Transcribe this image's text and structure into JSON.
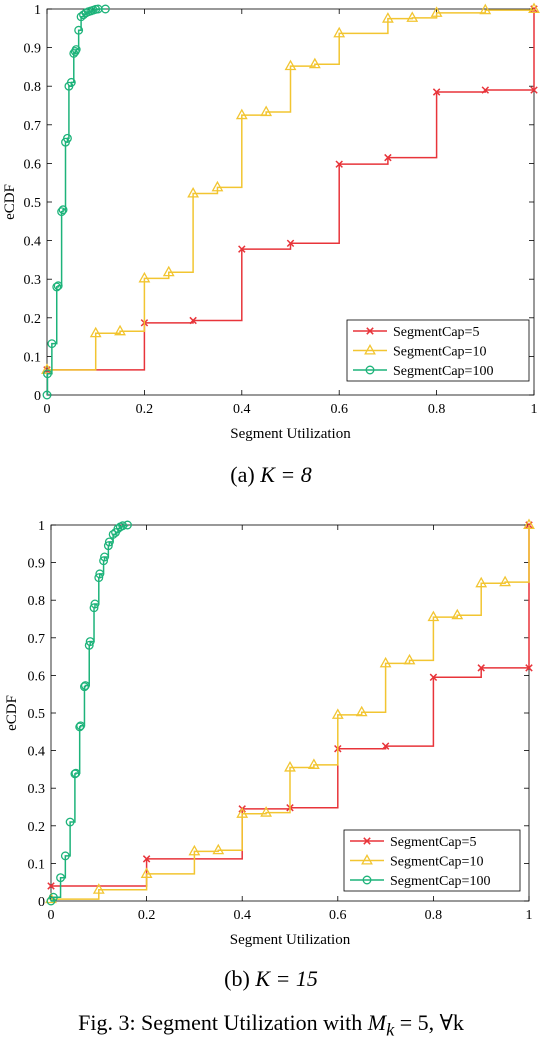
{
  "chart_data": [
    {
      "type": "line",
      "subcaption_label": "(a)",
      "subcaption_math": "K = 8",
      "xlabel": "Segment Utilization",
      "ylabel": "eCDF",
      "xlim": [
        0,
        1
      ],
      "ylim": [
        0,
        1
      ],
      "xticks": [
        "0",
        "0.2",
        "0.4",
        "0.6",
        "0.8",
        "1"
      ],
      "yticks": [
        "0",
        "0.1",
        "0.2",
        "0.3",
        "0.4",
        "0.5",
        "0.6",
        "0.7",
        "0.8",
        "0.9",
        "1"
      ],
      "legend_position": "bottom-right",
      "series": [
        {
          "name": "SegmentCap=5",
          "color": "#e8343a",
          "marker": "x",
          "x": [
            0,
            0.2,
            0.3,
            0.4,
            0.5,
            0.6,
            0.7,
            0.8,
            0.9,
            1.0,
            1.0
          ],
          "y": [
            0.065,
            0.187,
            0.193,
            0.378,
            0.393,
            0.598,
            0.615,
            0.785,
            0.79,
            0.79,
            1.0
          ]
        },
        {
          "name": "SegmentCap=10",
          "color": "#f2c531",
          "marker": "triangle",
          "x": [
            0,
            0.1,
            0.15,
            0.2,
            0.25,
            0.3,
            0.35,
            0.4,
            0.45,
            0.5,
            0.55,
            0.6,
            0.7,
            0.75,
            0.8,
            0.9,
            1.0
          ],
          "y": [
            0.065,
            0.16,
            0.165,
            0.302,
            0.318,
            0.522,
            0.538,
            0.725,
            0.733,
            0.852,
            0.857,
            0.937,
            0.975,
            0.977,
            0.99,
            0.997,
            1.0
          ]
        },
        {
          "name": "SegmentCap=100",
          "color": "#1db37a",
          "marker": "circle",
          "x": [
            0,
            0.001,
            0.01,
            0.02,
            0.023,
            0.03,
            0.033,
            0.038,
            0.042,
            0.045,
            0.05,
            0.055,
            0.058,
            0.06,
            0.065,
            0.07,
            0.075,
            0.08,
            0.085,
            0.09,
            0.095,
            0.1,
            0.105,
            0.12
          ],
          "y": [
            0,
            0.055,
            0.133,
            0.28,
            0.283,
            0.475,
            0.48,
            0.655,
            0.665,
            0.8,
            0.81,
            0.885,
            0.89,
            0.895,
            0.945,
            0.98,
            0.985,
            0.99,
            0.993,
            0.995,
            0.997,
            0.999,
            1.0,
            1.0
          ]
        }
      ]
    },
    {
      "type": "line",
      "subcaption_label": "(b)",
      "subcaption_math": "K = 15",
      "xlabel": "Segment Utilization",
      "ylabel": "eCDF",
      "xlim": [
        0,
        1
      ],
      "ylim": [
        0,
        1
      ],
      "xticks": [
        "0",
        "0.2",
        "0.4",
        "0.6",
        "0.8",
        "1"
      ],
      "yticks": [
        "0",
        "0.1",
        "0.2",
        "0.3",
        "0.4",
        "0.5",
        "0.6",
        "0.7",
        "0.8",
        "0.9",
        "1"
      ],
      "legend_position": "bottom-right",
      "series": [
        {
          "name": "SegmentCap=5",
          "color": "#e8343a",
          "marker": "x",
          "x": [
            0,
            0.2,
            0.4,
            0.5,
            0.6,
            0.7,
            0.8,
            0.9,
            1.0,
            1.0
          ],
          "y": [
            0.04,
            0.112,
            0.245,
            0.248,
            0.405,
            0.412,
            0.595,
            0.62,
            0.62,
            1.0
          ]
        },
        {
          "name": "SegmentCap=10",
          "color": "#f2c531",
          "marker": "triangle",
          "x": [
            0,
            0.1,
            0.2,
            0.3,
            0.35,
            0.4,
            0.45,
            0.5,
            0.55,
            0.6,
            0.65,
            0.7,
            0.75,
            0.8,
            0.85,
            0.9,
            0.95,
            1.0
          ],
          "y": [
            0.005,
            0.03,
            0.072,
            0.132,
            0.135,
            0.232,
            0.235,
            0.355,
            0.362,
            0.495,
            0.502,
            0.632,
            0.64,
            0.755,
            0.76,
            0.845,
            0.848,
            1.0
          ]
        },
        {
          "name": "SegmentCap=100",
          "color": "#1db37a",
          "marker": "circle",
          "x": [
            0,
            0.005,
            0.02,
            0.03,
            0.04,
            0.05,
            0.052,
            0.06,
            0.062,
            0.07,
            0.072,
            0.08,
            0.082,
            0.09,
            0.092,
            0.1,
            0.102,
            0.11,
            0.112,
            0.12,
            0.122,
            0.13,
            0.135,
            0.14,
            0.145,
            0.15,
            0.16
          ],
          "y": [
            0,
            0.01,
            0.062,
            0.12,
            0.21,
            0.338,
            0.34,
            0.463,
            0.466,
            0.57,
            0.573,
            0.68,
            0.69,
            0.78,
            0.79,
            0.86,
            0.87,
            0.905,
            0.915,
            0.945,
            0.955,
            0.975,
            0.98,
            0.99,
            0.995,
            0.998,
            1.0
          ]
        }
      ]
    }
  ],
  "caption": {
    "prefix": "Fig. 3: Segment Utilization with ",
    "math": "M",
    "sub": "k",
    "suffix": " = 5, ∀k"
  }
}
